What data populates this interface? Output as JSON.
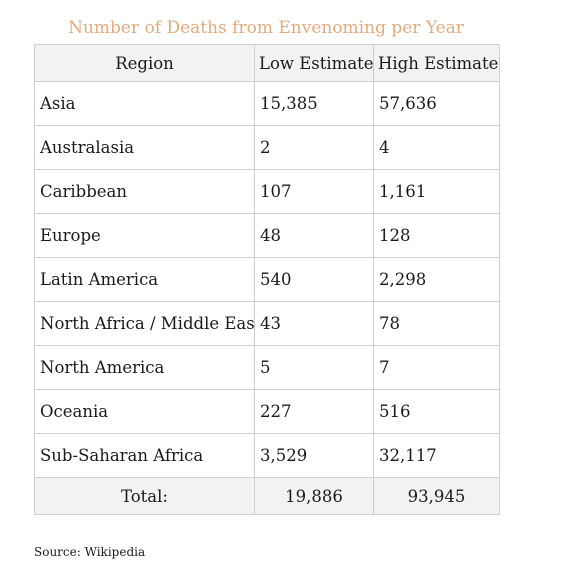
{
  "table": {
    "caption": "Number of Deaths from Envenoming per Year",
    "headers": [
      "Region",
      "Low Estimate",
      "High Estimate"
    ],
    "rows": [
      [
        "Asia",
        "15,385",
        "57,636"
      ],
      [
        "Australasia",
        "2",
        "4"
      ],
      [
        "Caribbean",
        "107",
        "1,161"
      ],
      [
        "Europe",
        "48",
        "128"
      ],
      [
        "Latin America",
        "540",
        "2,298"
      ],
      [
        "North Africa / Middle East",
        "43",
        "78"
      ],
      [
        "North America",
        "5",
        "7"
      ],
      [
        "Oceania",
        "227",
        "516"
      ],
      [
        "Sub-Saharan Africa",
        "3,529",
        "32,117"
      ]
    ],
    "total": [
      "Total:",
      "19,886",
      "93,945"
    ]
  },
  "source": "Source: Wikipedia",
  "colors": {
    "caption": "#e3ab7e",
    "header_background": "#f2f2f2",
    "border": "#cfcfcf"
  }
}
